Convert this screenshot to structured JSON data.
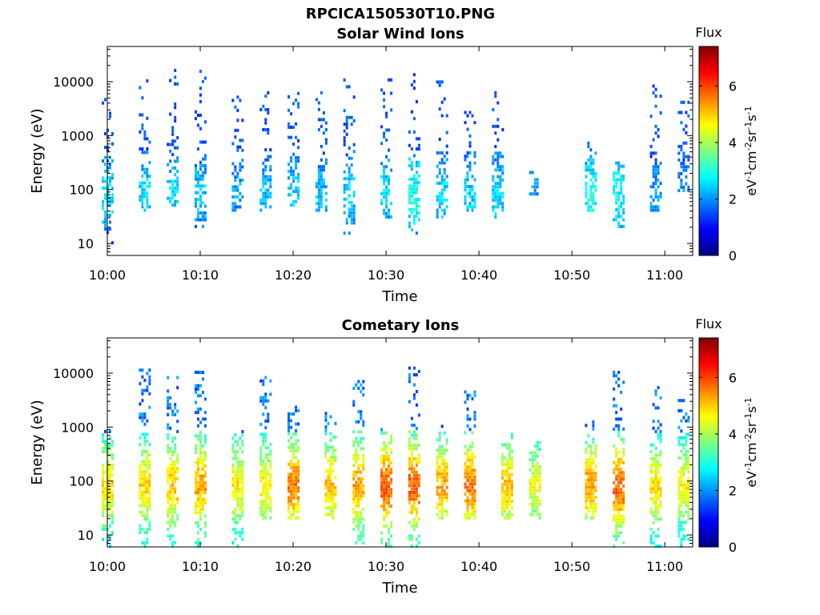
{
  "figure_title": "RPCICA150530T10.PNG",
  "colormap_stops": [
    "#00007f",
    "#0000ff",
    "#007fff",
    "#00ffff",
    "#7fff7f",
    "#ffff00",
    "#ff7f00",
    "#ff0000",
    "#7f0000"
  ],
  "chart_data": [
    {
      "type": "heatmap",
      "title": "Solar Wind Ions",
      "xlabel": "Time",
      "ylabel": "Energy (eV)",
      "x_ticks": [
        "10:00",
        "10:10",
        "10:20",
        "10:30",
        "10:40",
        "10:50",
        "11:00"
      ],
      "x_range": [
        "10:00",
        "11:03"
      ],
      "y_scale": "log",
      "y_ticks": [
        10,
        100,
        1000,
        10000
      ],
      "y_range": [
        6,
        45000
      ],
      "colorbar": {
        "label": "Flux",
        "unit_label": "eV-1cm-2sr-1s-1",
        "range": [
          0,
          7.4
        ],
        "ticks": [
          0,
          2,
          4,
          6
        ]
      },
      "bursts": [
        {
          "time": "10:00",
          "e_min": 10,
          "e_max": 6000,
          "flux": 2.5
        },
        {
          "time": "10:04",
          "e_min": 40,
          "e_max": 10000,
          "flux": 2.4
        },
        {
          "time": "10:07",
          "e_min": 50,
          "e_max": 18000,
          "flux": 2.4
        },
        {
          "time": "10:10",
          "e_min": 20,
          "e_max": 15000,
          "flux": 2.3
        },
        {
          "time": "10:14",
          "e_min": 40,
          "e_max": 5000,
          "flux": 2.0
        },
        {
          "time": "10:17",
          "e_min": 40,
          "e_max": 6000,
          "flux": 2.2
        },
        {
          "time": "10:20",
          "e_min": 50,
          "e_max": 9000,
          "flux": 2.3
        },
        {
          "time": "10:23",
          "e_min": 40,
          "e_max": 8000,
          "flux": 2.2
        },
        {
          "time": "10:26",
          "e_min": 15,
          "e_max": 12000,
          "flux": 2.3
        },
        {
          "time": "10:30",
          "e_min": 30,
          "e_max": 12000,
          "flux": 2.4
        },
        {
          "time": "10:33",
          "e_min": 15,
          "e_max": 15000,
          "flux": 2.8
        },
        {
          "time": "10:36",
          "e_min": 30,
          "e_max": 11000,
          "flux": 2.4
        },
        {
          "time": "10:39",
          "e_min": 40,
          "e_max": 3000,
          "flux": 2.3
        },
        {
          "time": "10:42",
          "e_min": 30,
          "e_max": 6000,
          "flux": 2.4
        },
        {
          "time": "10:46",
          "e_min": 80,
          "e_max": 200,
          "flux": 2.0
        },
        {
          "time": "10:52",
          "e_min": 40,
          "e_max": 700,
          "flux": 2.8
        },
        {
          "time": "10:55",
          "e_min": 20,
          "e_max": 300,
          "flux": 2.7
        },
        {
          "time": "10:59",
          "e_min": 40,
          "e_max": 8000,
          "flux": 2.0
        },
        {
          "time": "11:02",
          "e_min": 80,
          "e_max": 4000,
          "flux": 2.0
        }
      ]
    },
    {
      "type": "heatmap",
      "title": "Cometary Ions",
      "xlabel": "Time",
      "ylabel": "Energy (eV)",
      "x_ticks": [
        "10:00",
        "10:10",
        "10:20",
        "10:30",
        "10:40",
        "10:50",
        "11:00"
      ],
      "x_range": [
        "10:00",
        "11:03"
      ],
      "y_scale": "log",
      "y_ticks": [
        10,
        100,
        1000,
        10000
      ],
      "y_range": [
        6,
        45000
      ],
      "colorbar": {
        "label": "Flux",
        "unit_label": "eV-1cm-2sr-1s-1",
        "range": [
          0,
          7.4
        ],
        "ticks": [
          0,
          2,
          4,
          6
        ]
      },
      "bursts": [
        {
          "time": "10:00",
          "e_min": 6,
          "e_max": 800,
          "flux": 4.6
        },
        {
          "time": "10:04",
          "e_min": 6,
          "e_max": 11000,
          "flux": 4.6
        },
        {
          "time": "10:07",
          "e_min": 6,
          "e_max": 8000,
          "flux": 4.8
        },
        {
          "time": "10:10",
          "e_min": 6,
          "e_max": 10000,
          "flux": 5.0
        },
        {
          "time": "10:14",
          "e_min": 6,
          "e_max": 800,
          "flux": 4.5
        },
        {
          "time": "10:17",
          "e_min": 20,
          "e_max": 8000,
          "flux": 4.5
        },
        {
          "time": "10:20",
          "e_min": 20,
          "e_max": 3000,
          "flux": 5.3
        },
        {
          "time": "10:24",
          "e_min": 20,
          "e_max": 2000,
          "flux": 4.8
        },
        {
          "time": "10:27",
          "e_min": 6,
          "e_max": 9000,
          "flux": 5.0
        },
        {
          "time": "10:30",
          "e_min": 6,
          "e_max": 1000,
          "flux": 5.5
        },
        {
          "time": "10:33",
          "e_min": 6,
          "e_max": 12000,
          "flux": 5.5
        },
        {
          "time": "10:36",
          "e_min": 20,
          "e_max": 1000,
          "flux": 5.0
        },
        {
          "time": "10:39",
          "e_min": 20,
          "e_max": 5000,
          "flux": 5.3
        },
        {
          "time": "10:43",
          "e_min": 20,
          "e_max": 700,
          "flux": 4.8
        },
        {
          "time": "10:46",
          "e_min": 20,
          "e_max": 500,
          "flux": 4.3
        },
        {
          "time": "10:52",
          "e_min": 20,
          "e_max": 1200,
          "flux": 5.0
        },
        {
          "time": "10:55",
          "e_min": 6,
          "e_max": 10000,
          "flux": 5.5
        },
        {
          "time": "10:59",
          "e_min": 6,
          "e_max": 6000,
          "flux": 4.6
        },
        {
          "time": "11:02",
          "e_min": 6,
          "e_max": 3000,
          "flux": 4.4
        }
      ]
    }
  ]
}
